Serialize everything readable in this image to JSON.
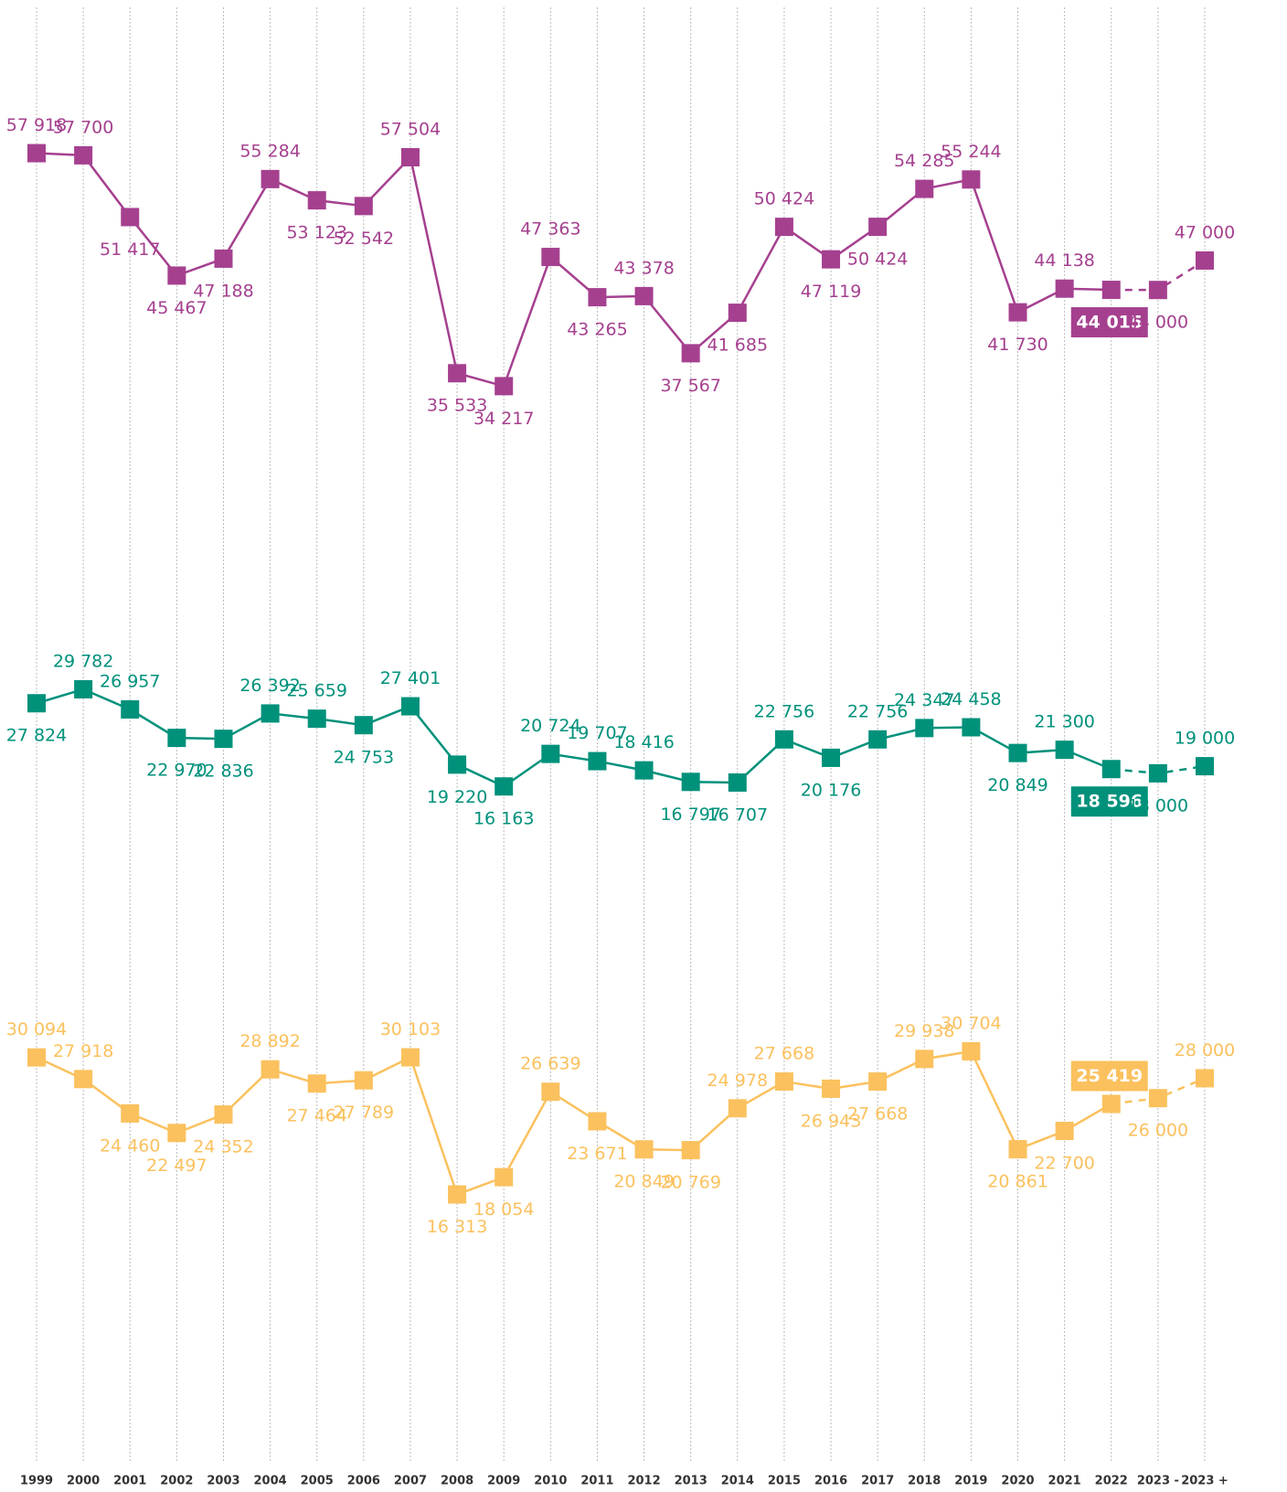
{
  "chart_data": {
    "type": "line",
    "categories": [
      "1999",
      "2000",
      "2001",
      "2002",
      "2003",
      "2004",
      "2005",
      "2006",
      "2007",
      "2008",
      "2009",
      "2010",
      "2011",
      "2012",
      "2013",
      "2014",
      "2015",
      "2016",
      "2017",
      "2018",
      "2019",
      "2020",
      "2021",
      "2022",
      "2023 -",
      "2023 +"
    ],
    "grid": true,
    "series": [
      {
        "color": "#a5408f",
        "ylim": [
          27000,
          64200
        ],
        "values": [
          57918,
          57700,
          51417,
          45467,
          47188,
          55284,
          53123,
          52542,
          57504,
          35533,
          34217,
          47363,
          43265,
          43378,
          37567,
          41685,
          50424,
          47119,
          50424,
          54285,
          55244,
          41730,
          44138,
          44015,
          44000,
          47000
        ],
        "value_labels": [
          "57 918",
          "57 700",
          "51 417",
          "45 467",
          "47 188",
          "55 284",
          "53 123",
          "52 542",
          "57 504",
          "35 533",
          "34 217",
          "47 363",
          "43 265",
          "43 378",
          "37 567",
          "41 685",
          "50 424",
          "47 119",
          "50 424",
          "54 285",
          "55 244",
          "41 730",
          "44 138",
          "44 015",
          "44 000",
          "47 000"
        ]
      },
      {
        "color": "#00917b",
        "ylim": [
          8500,
          36700
        ],
        "values": [
          27824,
          29782,
          26957,
          22970,
          22836,
          26392,
          25659,
          24753,
          27401,
          19220,
          16163,
          20724,
          19707,
          18416,
          16797,
          16707,
          22756,
          20176,
          22756,
          24347,
          24458,
          20849,
          21300,
          18596,
          18000,
          19000
        ],
        "value_labels": [
          "27 824",
          "29 782",
          "26 957",
          "22 970",
          "22 836",
          "26 392",
          "25 659",
          "24 753",
          "27 401",
          "19 220",
          "16 163",
          "20 724",
          "19 707",
          "18 416",
          "16 797",
          "16 707",
          "22 756",
          "20 176",
          "22 756",
          "24 347",
          "24 458",
          "20 849",
          "21 300",
          "18 596",
          "18 000",
          "19 000"
        ]
      },
      {
        "color": "#fbc15e",
        "ylim": [
          11400,
          35300
        ],
        "values": [
          30094,
          27918,
          24460,
          22497,
          24352,
          28892,
          27464,
          27789,
          30103,
          16313,
          18054,
          26639,
          23671,
          20849,
          20769,
          24978,
          27668,
          26943,
          27668,
          29938,
          30704,
          20861,
          22700,
          25419,
          26000,
          28000
        ],
        "value_labels": [
          "30 094",
          "27 918",
          "24 460",
          "22 497",
          "24 352",
          "28 892",
          "27 464",
          "27 789",
          "30 103",
          "16 313",
          "18 054",
          "26 639",
          "23 671",
          "20 849",
          "20 769",
          "24 978",
          "27 668",
          "26 943",
          "27 668",
          "29 938",
          "30 704",
          "20 861",
          "22 700",
          "25 419",
          "26 000",
          "28 000"
        ]
      }
    ]
  }
}
